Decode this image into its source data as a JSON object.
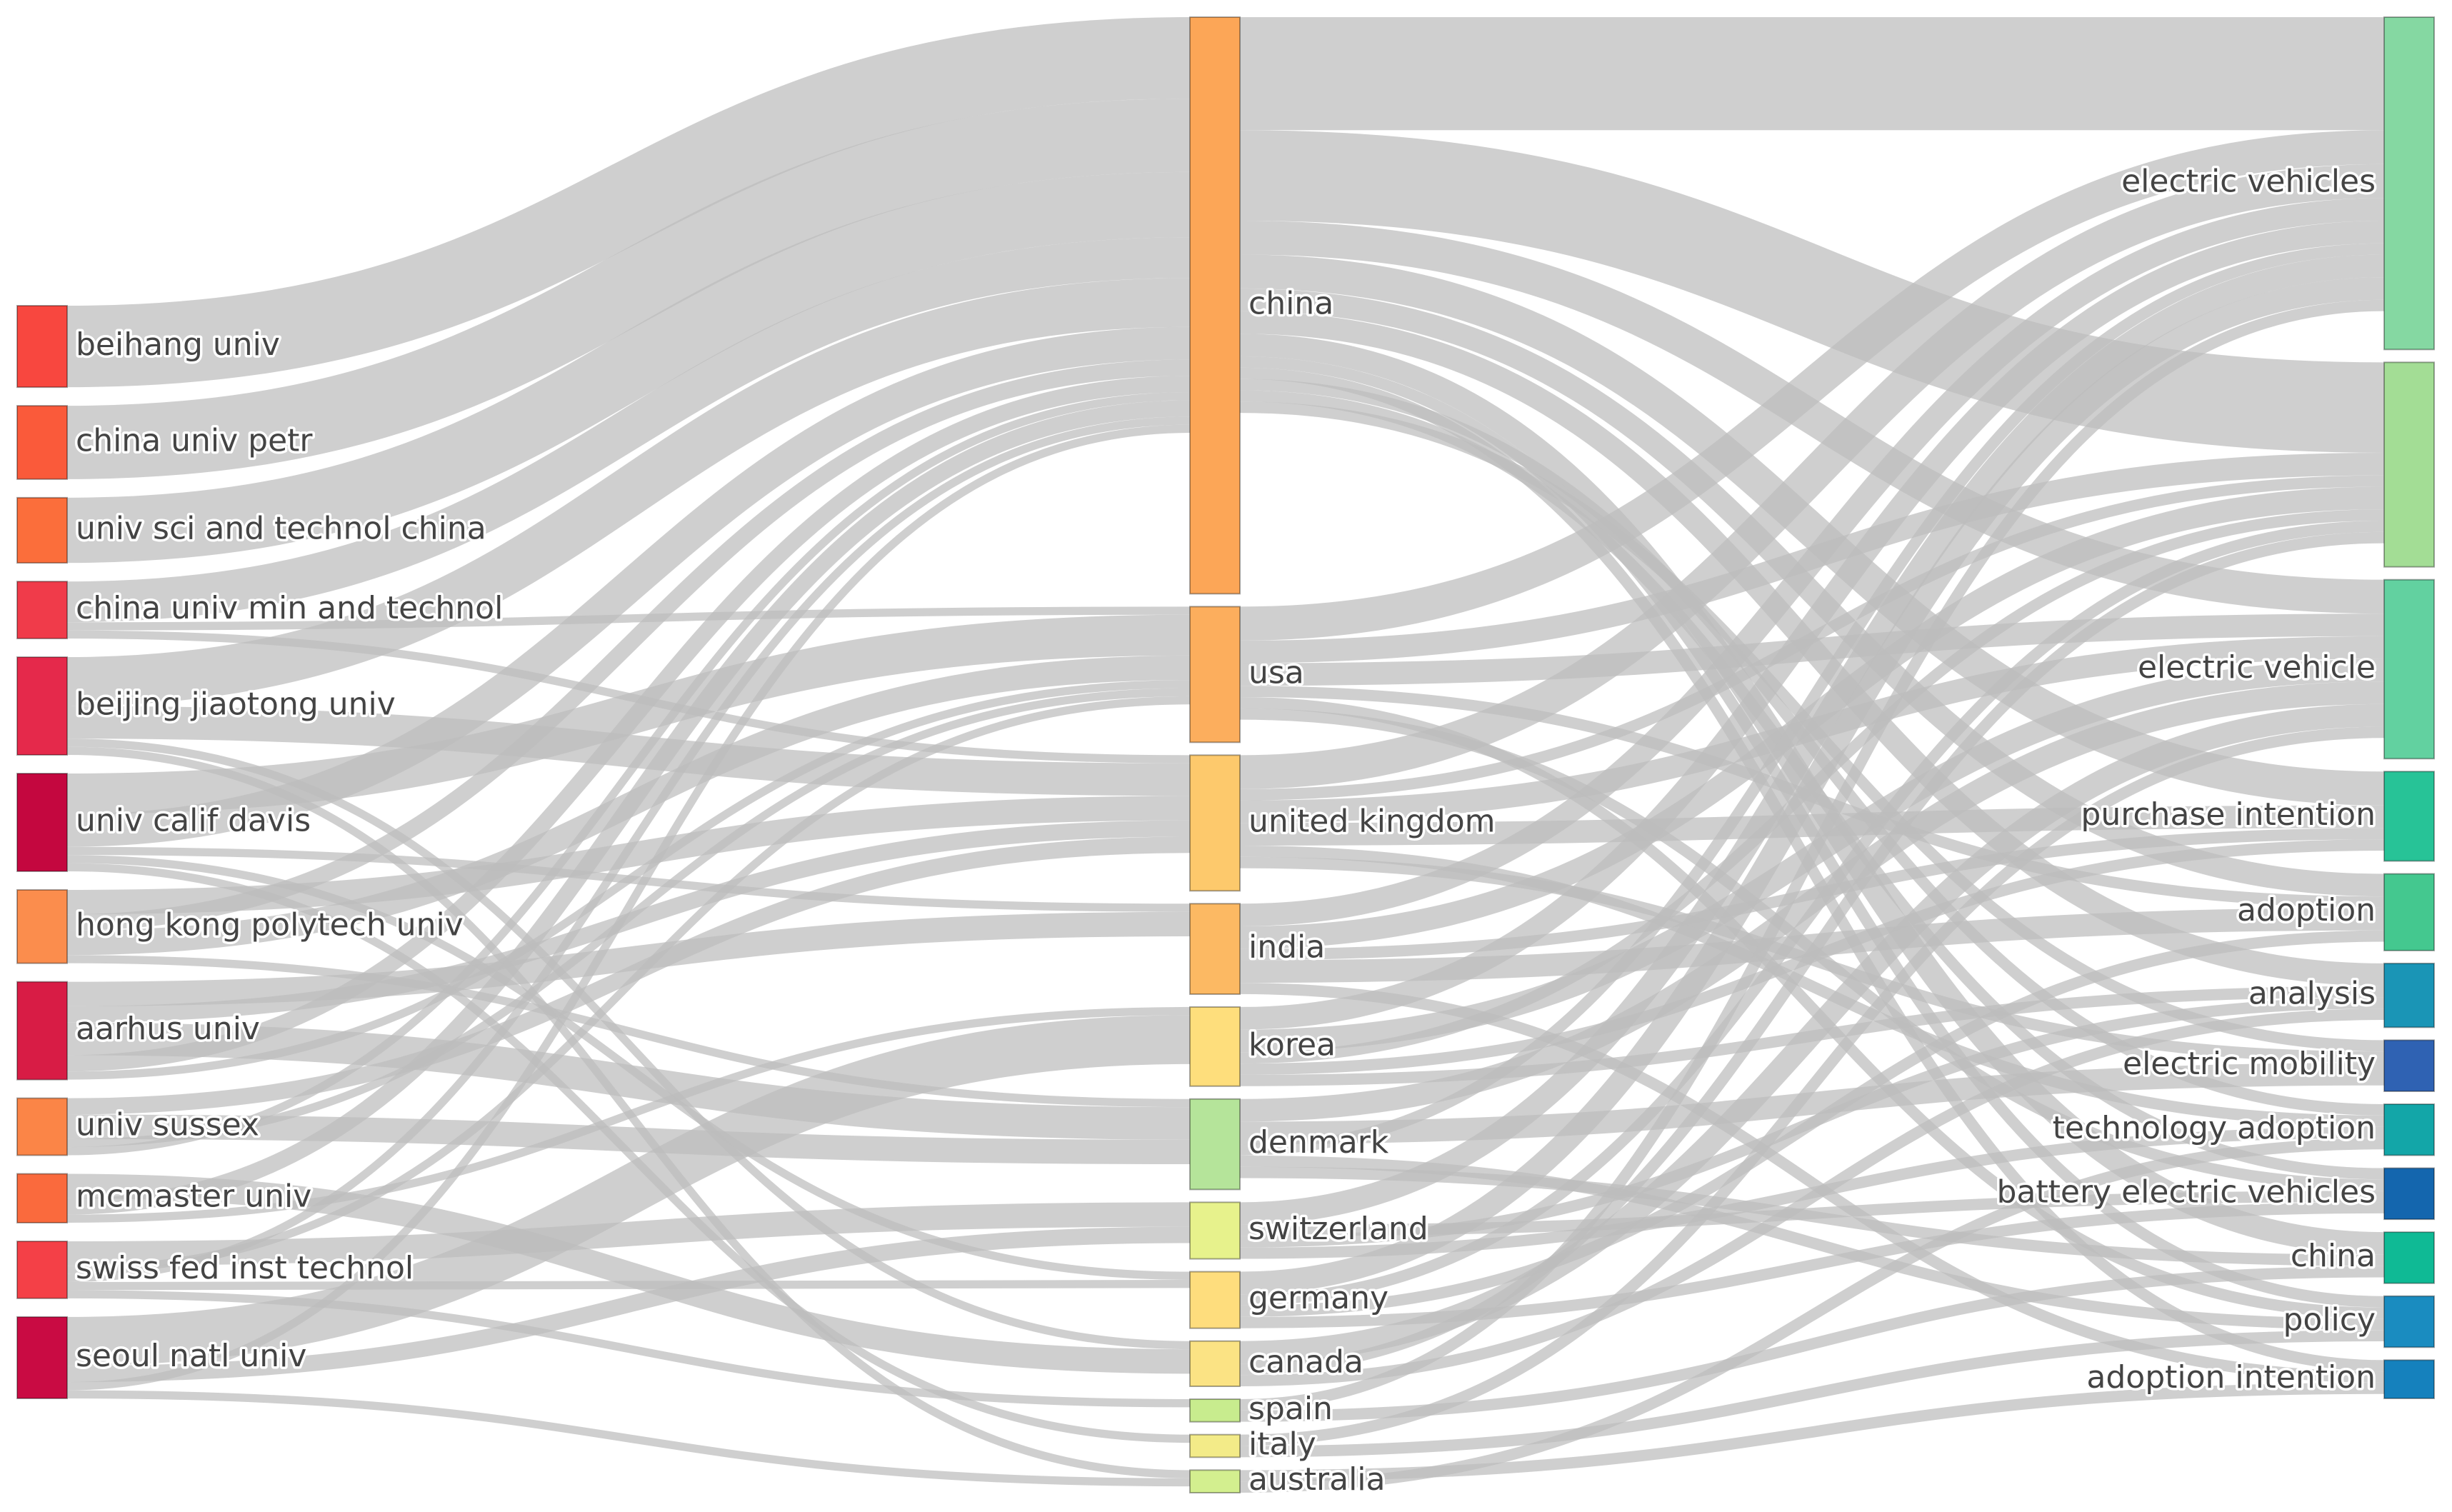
{
  "columns": {
    "institutions": [
      {
        "id": "beihang",
        "label": "beihang univ",
        "color": "#f8473f"
      },
      {
        "id": "cupetr",
        "label": "china univ petr",
        "color": "#fa5a3a"
      },
      {
        "id": "ustc",
        "label": "univ sci and technol china",
        "color": "#fb6e3b"
      },
      {
        "id": "cumt",
        "label": "china univ min and technol",
        "color": "#f03b4a"
      },
      {
        "id": "bjtu",
        "label": "beijing jiaotong univ",
        "color": "#e5294b"
      },
      {
        "id": "ucdavis",
        "label": "univ calif davis",
        "color": "#c4073f"
      },
      {
        "id": "polyu",
        "label": "hong kong polytech univ",
        "color": "#fb8d4d"
      },
      {
        "id": "aarhus",
        "label": "aarhus univ",
        "color": "#d81c45"
      },
      {
        "id": "sussex",
        "label": "univ sussex",
        "color": "#fb8547"
      },
      {
        "id": "mcmaster",
        "label": "mcmaster univ",
        "color": "#fa6a3d"
      },
      {
        "id": "eth",
        "label": "swiss fed inst technol",
        "color": "#f44047"
      },
      {
        "id": "snu",
        "label": "seoul natl univ",
        "color": "#c90b43"
      }
    ],
    "countries": [
      {
        "id": "china",
        "label": "china",
        "color": "#fca657"
      },
      {
        "id": "usa",
        "label": "usa",
        "color": "#fcae5d"
      },
      {
        "id": "uk",
        "label": "united kingdom",
        "color": "#fdc96c"
      },
      {
        "id": "india",
        "label": "india",
        "color": "#fcb963"
      },
      {
        "id": "korea",
        "label": "korea",
        "color": "#fede7c"
      },
      {
        "id": "denmark",
        "label": "denmark",
        "color": "#b5e49a"
      },
      {
        "id": "switzerland",
        "label": "switzerland",
        "color": "#e7f28c"
      },
      {
        "id": "germany",
        "label": "germany",
        "color": "#fedd7d"
      },
      {
        "id": "canada",
        "label": "canada",
        "color": "#fbe384"
      },
      {
        "id": "spain",
        "label": "spain",
        "color": "#c8ec8e"
      },
      {
        "id": "italy",
        "label": "italy",
        "color": "#f3eb88"
      },
      {
        "id": "australia",
        "label": "australia",
        "color": "#d3ef8f"
      }
    ],
    "keywords": [
      {
        "id": "evs",
        "label": "electric vehicles",
        "color": "#85d8a2"
      },
      {
        "id": "kw_blank",
        "label": "",
        "color": "#a3dd95"
      },
      {
        "id": "ev",
        "label": "electric vehicle",
        "color": "#62d1a0"
      },
      {
        "id": "pi",
        "label": "purchase intention",
        "color": "#27c397"
      },
      {
        "id": "adoption",
        "label": "adoption",
        "color": "#44c88f"
      },
      {
        "id": "analysis",
        "label": "analysis",
        "color": "#1a95b6"
      },
      {
        "id": "emob",
        "label": "electric mobility",
        "color": "#2f62b3"
      },
      {
        "id": "techad",
        "label": "technology adoption",
        "color": "#13a6a8"
      },
      {
        "id": "bev",
        "label": "battery electric vehicles",
        "color": "#1466ae"
      },
      {
        "id": "kwchina",
        "label": "china",
        "color": "#0fba95"
      },
      {
        "id": "policy",
        "label": "policy",
        "color": "#1a8cc0"
      },
      {
        "id": "adint",
        "label": "adoption intention",
        "color": "#1581bd"
      }
    ]
  },
  "links_left": [
    [
      "beihang",
      "china",
      10
    ],
    [
      "cupetr",
      "china",
      9
    ],
    [
      "ustc",
      "china",
      8
    ],
    [
      "cumt",
      "china",
      5
    ],
    [
      "cumt",
      "usa",
      1
    ],
    [
      "cumt",
      "uk",
      1
    ],
    [
      "bjtu",
      "china",
      6
    ],
    [
      "bjtu",
      "uk",
      4
    ],
    [
      "bjtu",
      "canada",
      1
    ],
    [
      "bjtu",
      "australia",
      1
    ],
    [
      "ucdavis",
      "usa",
      5
    ],
    [
      "ucdavis",
      "china",
      4
    ],
    [
      "ucdavis",
      "india",
      1
    ],
    [
      "ucdavis",
      "germany",
      1
    ],
    [
      "ucdavis",
      "italy",
      1
    ],
    [
      "polyu",
      "uk",
      3
    ],
    [
      "polyu",
      "china",
      2
    ],
    [
      "polyu",
      "usa",
      3
    ],
    [
      "polyu",
      "denmark",
      1
    ],
    [
      "aarhus",
      "india",
      3
    ],
    [
      "aarhus",
      "uk",
      2
    ],
    [
      "aarhus",
      "denmark",
      4
    ],
    [
      "aarhus",
      "china",
      2
    ],
    [
      "aarhus",
      "usa",
      1
    ],
    [
      "sussex",
      "uk",
      2
    ],
    [
      "sussex",
      "denmark",
      3
    ],
    [
      "sussex",
      "usa",
      1
    ],
    [
      "sussex",
      "china",
      1
    ],
    [
      "mcmaster",
      "canada",
      3
    ],
    [
      "mcmaster",
      "china",
      2
    ],
    [
      "mcmaster",
      "korea",
      1
    ],
    [
      "eth",
      "switzerland",
      3
    ],
    [
      "eth",
      "usa",
      1
    ],
    [
      "eth",
      "china",
      1
    ],
    [
      "eth",
      "germany",
      1
    ],
    [
      "eth",
      "spain",
      1
    ],
    [
      "snu",
      "korea",
      6
    ],
    [
      "snu",
      "switzerland",
      2
    ],
    [
      "snu",
      "china",
      1
    ],
    [
      "snu",
      "australia",
      1
    ]
  ],
  "links_right": [
    [
      "china",
      "evs",
      10
    ],
    [
      "china",
      "kw_blank",
      8
    ],
    [
      "china",
      "ev",
      3
    ],
    [
      "china",
      "pi",
      3
    ],
    [
      "china",
      "adoption",
      2
    ],
    [
      "china",
      "analysis",
      2
    ],
    [
      "china",
      "kwchina",
      2
    ],
    [
      "china",
      "policy",
      1
    ],
    [
      "china",
      "adint",
      1
    ],
    [
      "china",
      "techad",
      1
    ],
    [
      "china",
      "bev",
      1
    ],
    [
      "china",
      "emob",
      1
    ],
    [
      "usa",
      "evs",
      3
    ],
    [
      "usa",
      "kw_blank",
      2
    ],
    [
      "usa",
      "ev",
      2
    ],
    [
      "usa",
      "adoption",
      1
    ],
    [
      "usa",
      "policy",
      1
    ],
    [
      "usa",
      "bev",
      1
    ],
    [
      "uk",
      "evs",
      3
    ],
    [
      "uk",
      "kw_blank",
      1
    ],
    [
      "uk",
      "ev",
      2
    ],
    [
      "uk",
      "pi",
      2
    ],
    [
      "uk",
      "techad",
      1
    ],
    [
      "uk",
      "emob",
      1
    ],
    [
      "india",
      "evs",
      2
    ],
    [
      "india",
      "kw_blank",
      2
    ],
    [
      "india",
      "pi",
      1
    ],
    [
      "india",
      "adoption",
      2
    ],
    [
      "india",
      "adint",
      1
    ],
    [
      "korea",
      "evs",
      2
    ],
    [
      "korea",
      "ev",
      2
    ],
    [
      "korea",
      "kw_blank",
      1
    ],
    [
      "korea",
      "pi",
      1
    ],
    [
      "korea",
      "analysis",
      1
    ],
    [
      "denmark",
      "ev",
      2
    ],
    [
      "denmark",
      "emob",
      2
    ],
    [
      "denmark",
      "evs",
      1
    ],
    [
      "denmark",
      "policy",
      1
    ],
    [
      "denmark",
      "kwchina",
      1
    ],
    [
      "switzerland",
      "evs",
      2
    ],
    [
      "switzerland",
      "bev",
      1
    ],
    [
      "switzerland",
      "analysis",
      1
    ],
    [
      "switzerland",
      "techad",
      1
    ],
    [
      "germany",
      "evs",
      2
    ],
    [
      "germany",
      "kw_blank",
      1
    ],
    [
      "germany",
      "adoption",
      1
    ],
    [
      "germany",
      "bev",
      1
    ],
    [
      "canada",
      "ev",
      2
    ],
    [
      "canada",
      "kw_blank",
      1
    ],
    [
      "canada",
      "analysis",
      1
    ],
    [
      "spain",
      "evs",
      1
    ],
    [
      "spain",
      "kwchina",
      1
    ],
    [
      "italy",
      "ev",
      1
    ],
    [
      "italy",
      "policy",
      1
    ],
    [
      "australia",
      "adint",
      1
    ],
    [
      "australia",
      "techad",
      1
    ]
  ],
  "colors": {
    "link": "#bdbdbd",
    "link_opacity": "0.72",
    "label": "#444444"
  }
}
